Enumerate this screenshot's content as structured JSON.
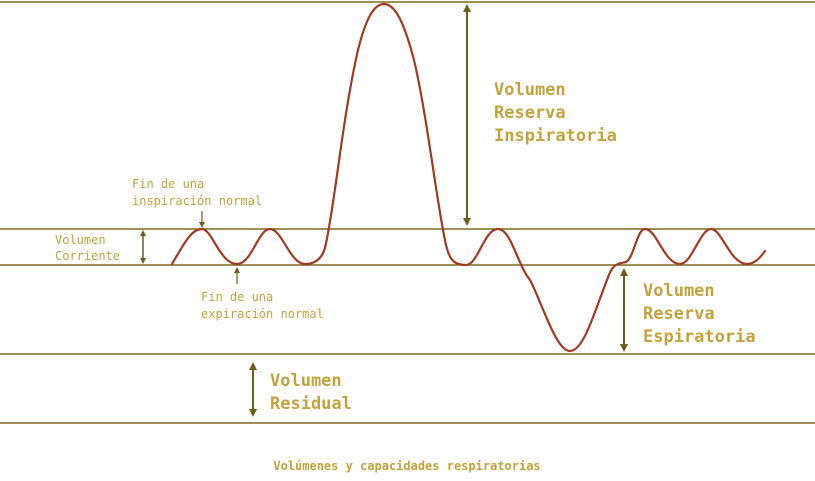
{
  "diagram": {
    "caption": "Volúmenes y capacidades respiratorias",
    "labels": {
      "irv": [
        "Volumen",
        "Reserva",
        "Inspiratoria"
      ],
      "tidal": [
        "Volumen",
        "Corriente"
      ],
      "erv": [
        "Volumen",
        "Reserva",
        "Espiratoria"
      ],
      "residual": [
        "Volumen",
        "Residual"
      ],
      "end_inspiration": [
        "Fin de una",
        "inspiración normal"
      ],
      "end_expiration": [
        "Fin de una",
        "expiración normal"
      ]
    }
  },
  "colors": {
    "line": "#7d6a1d",
    "curve": "#a03a22",
    "text": "#c2a23a",
    "arrow": "#6e5d18"
  }
}
